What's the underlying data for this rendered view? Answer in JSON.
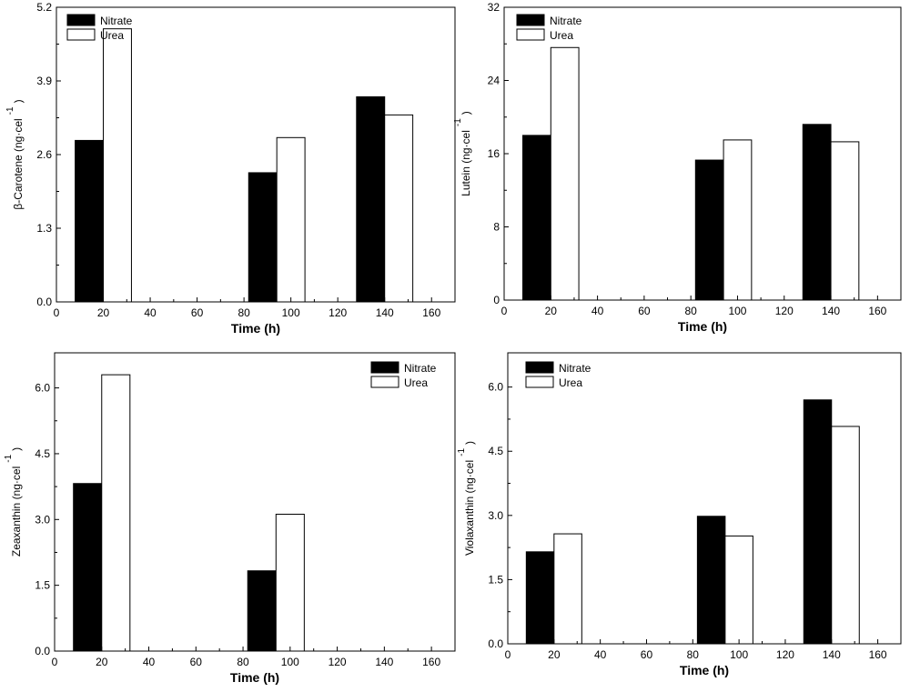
{
  "chart_data": [
    {
      "type": "bar",
      "id": "beta-carotene",
      "ylabel": "β-Carotene (ng·cel",
      "ylabel_sup": "-1",
      "ylabel_close": ")",
      "xlabel": "Time (h)",
      "xlim": [
        0,
        170
      ],
      "ylim": [
        0,
        5.2
      ],
      "yticks": [
        0.0,
        1.3,
        2.6,
        3.9,
        5.2
      ],
      "ytick_labels": [
        "0.0",
        "1.3",
        "2.6",
        "3.9",
        "5.2"
      ],
      "xticks": [
        0,
        20,
        40,
        60,
        80,
        100,
        120,
        140,
        160
      ],
      "xtick_labels": [
        "0",
        "20",
        "40",
        "60",
        "80",
        "100",
        "120",
        "140",
        "160"
      ],
      "bar_width": 12,
      "legend": {
        "position": "top-left",
        "entries": [
          "Nitrate",
          "Urea"
        ]
      },
      "series": [
        {
          "name": "Nitrate",
          "color": "#000000",
          "x": [
            14,
            88,
            134
          ],
          "values": [
            2.85,
            2.28,
            3.62
          ]
        },
        {
          "name": "Urea",
          "color": "#ffffff",
          "x": [
            26,
            100,
            146
          ],
          "values": [
            4.82,
            2.9,
            3.3
          ]
        }
      ]
    },
    {
      "type": "bar",
      "id": "lutein",
      "ylabel": "Lutein (ng·cel",
      "ylabel_sup": "-1",
      "ylabel_close": ")",
      "xlabel": "Time (h)",
      "xlim": [
        0,
        170
      ],
      "ylim": [
        0,
        32
      ],
      "yticks": [
        0,
        8,
        16,
        24,
        32
      ],
      "ytick_labels": [
        "0",
        "8",
        "16",
        "24",
        "32"
      ],
      "xticks": [
        0,
        20,
        40,
        60,
        80,
        100,
        120,
        140,
        160
      ],
      "xtick_labels": [
        "0",
        "20",
        "40",
        "60",
        "80",
        "100",
        "120",
        "140",
        "160"
      ],
      "bar_width": 12,
      "legend": {
        "position": "top-left",
        "entries": [
          "Nitrate",
          "Urea"
        ]
      },
      "series": [
        {
          "name": "Nitrate",
          "color": "#000000",
          "x": [
            14,
            88,
            134
          ],
          "values": [
            18.0,
            15.3,
            19.2
          ]
        },
        {
          "name": "Urea",
          "color": "#ffffff",
          "x": [
            26,
            100,
            146
          ],
          "values": [
            27.6,
            17.5,
            17.3
          ]
        }
      ]
    },
    {
      "type": "bar",
      "id": "zeaxanthin",
      "ylabel": "Zeaxanthin (ng·cel",
      "ylabel_sup": "-1",
      "ylabel_close": ")",
      "xlabel": "Time (h)",
      "xlim": [
        0,
        170
      ],
      "ylim": [
        0,
        6.8
      ],
      "yticks": [
        0.0,
        1.5,
        3.0,
        4.5,
        6.0
      ],
      "ytick_labels": [
        "0.0",
        "1.5",
        "3.0",
        "4.5",
        "6.0"
      ],
      "xticks": [
        0,
        20,
        40,
        60,
        80,
        100,
        120,
        140,
        160
      ],
      "xtick_labels": [
        "0",
        "20",
        "40",
        "60",
        "80",
        "100",
        "120",
        "140",
        "160"
      ],
      "bar_width": 12,
      "legend": {
        "position": "top-right",
        "entries": [
          "Nitrate",
          "Urea"
        ]
      },
      "series": [
        {
          "name": "Nitrate",
          "color": "#000000",
          "x": [
            14,
            88
          ],
          "values": [
            3.82,
            1.83
          ]
        },
        {
          "name": "Urea",
          "color": "#ffffff",
          "x": [
            26,
            100
          ],
          "values": [
            6.3,
            3.12
          ]
        }
      ]
    },
    {
      "type": "bar",
      "id": "violaxanthin",
      "ylabel": "Violaxanthin (ng·cel",
      "ylabel_sup": "-1",
      "ylabel_close": ")",
      "xlabel": "Time (h)",
      "xlim": [
        0,
        170
      ],
      "ylim": [
        0,
        6.8
      ],
      "yticks": [
        0.0,
        1.5,
        3.0,
        4.5,
        6.0
      ],
      "ytick_labels": [
        "0.0",
        "1.5",
        "3.0",
        "4.5",
        "6.0"
      ],
      "xticks": [
        0,
        20,
        40,
        60,
        80,
        100,
        120,
        140,
        160
      ],
      "xtick_labels": [
        "0",
        "20",
        "40",
        "60",
        "80",
        "100",
        "120",
        "140",
        "160"
      ],
      "bar_width": 12,
      "legend": {
        "position": "top-left",
        "entries": [
          "Nitrate",
          "Urea"
        ]
      },
      "series": [
        {
          "name": "Nitrate",
          "color": "#000000",
          "x": [
            14,
            88,
            134
          ],
          "values": [
            2.15,
            2.98,
            5.7
          ]
        },
        {
          "name": "Urea",
          "color": "#ffffff",
          "x": [
            26,
            100,
            146
          ],
          "values": [
            2.57,
            2.52,
            5.08
          ]
        }
      ]
    }
  ]
}
